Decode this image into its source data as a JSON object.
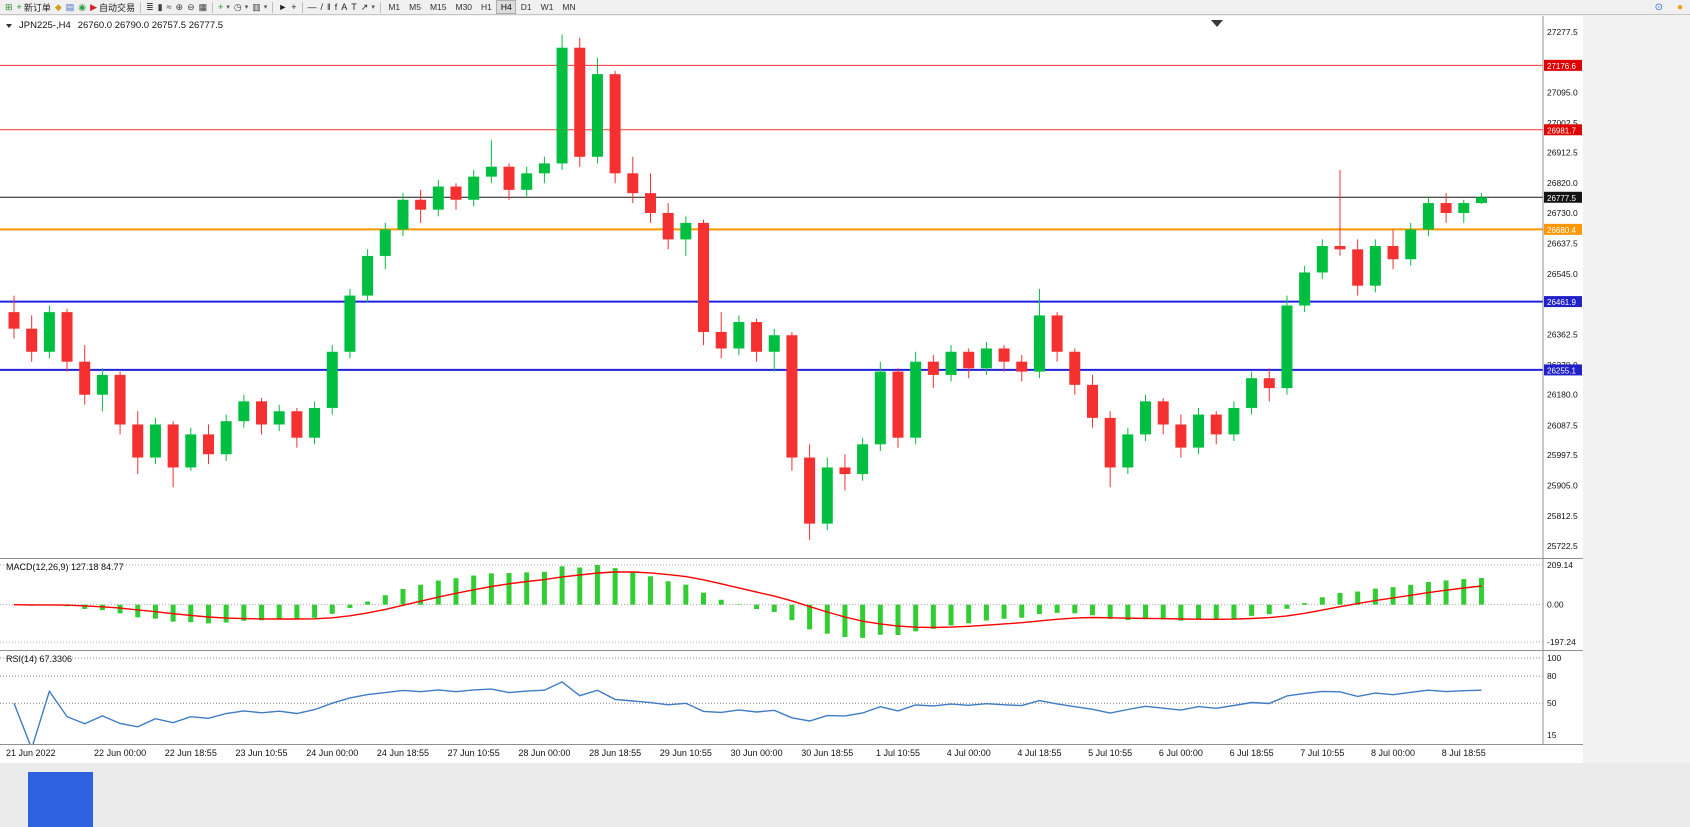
{
  "toolbar": {
    "dropdown_glyph": "▾",
    "groups": [
      {
        "name": "file-group",
        "items": [
          {
            "name": "new-chart",
            "glyph": "⊞",
            "color": "#2e8b2e"
          },
          {
            "name": "new-order-button",
            "glyph": "+",
            "color": "#0a9a0a",
            "label": "新订单"
          },
          {
            "name": "profiles",
            "glyph": "◆",
            "color": "#d4a017"
          },
          {
            "name": "market-watch",
            "glyph": "▤",
            "color": "#3a6fd0"
          },
          {
            "name": "navigator",
            "glyph": "◉",
            "color": "#2f9e44"
          },
          {
            "name": "autotrading-button",
            "glyph": "▶",
            "color": "#d02020",
            "label": "自动交易"
          }
        ]
      },
      {
        "name": "chart-type-group",
        "items": [
          {
            "name": "bar-chart",
            "glyph": "≣",
            "color": "#404040"
          },
          {
            "name": "candlestick-chart",
            "glyph": "▮",
            "color": "#404040"
          },
          {
            "name": "line-chart",
            "glyph": "≈",
            "color": "#404040"
          },
          {
            "name": "zoom-in",
            "glyph": "⊕",
            "color": "#404040"
          },
          {
            "name": "zoom-out",
            "glyph": "⊖",
            "color": "#404040"
          },
          {
            "name": "tile-windows",
            "glyph": "▦",
            "color": "#404040"
          }
        ]
      },
      {
        "name": "tools-group",
        "items": [
          {
            "name": "indicators",
            "glyph": "+",
            "color": "#0a9a0a",
            "dropdown": true
          },
          {
            "name": "periods",
            "glyph": "◷",
            "color": "#404040",
            "dropdown": true
          },
          {
            "name": "templates",
            "glyph": "▥",
            "color": "#404040",
            "dropdown": true
          }
        ]
      },
      {
        "name": "cursor-group",
        "items": [
          {
            "name": "cursor",
            "glyph": "►",
            "color": "#202020"
          },
          {
            "name": "crosshair",
            "glyph": "+",
            "color": "#202020"
          }
        ]
      },
      {
        "name": "drawing-group",
        "items": [
          {
            "name": "horizontal-line",
            "glyph": "—",
            "color": "#202020"
          },
          {
            "name": "trendline",
            "glyph": "/",
            "color": "#202020"
          },
          {
            "name": "equidistant-channel",
            "glyph": "‖",
            "color": "#202020"
          },
          {
            "name": "fibonacci",
            "glyph": "f",
            "color": "#202020"
          },
          {
            "name": "text",
            "glyph": "A",
            "color": "#202020"
          },
          {
            "name": "text-label",
            "glyph": "T",
            "color": "#202020"
          },
          {
            "name": "arrows",
            "glyph": "↗",
            "color": "#202020",
            "dropdown": true
          }
        ]
      }
    ],
    "timeframes": [
      "M1",
      "M5",
      "M15",
      "M30",
      "H1",
      "H4",
      "D1",
      "W1",
      "MN"
    ],
    "active_timeframe": "H4",
    "right_icons": [
      {
        "name": "search",
        "glyph": "⊙",
        "color": "#2b6fd4"
      },
      {
        "name": "notification",
        "glyph": "●",
        "color": "#f0a000"
      }
    ]
  },
  "chart": {
    "title": "JPN225-,H4",
    "ohlc_text": "26760.0 26790.0 26757.5 26777.5",
    "open": 26760.0,
    "high": 26790.0,
    "low": 26757.5,
    "close": 26777.5,
    "price_axis_labels": [
      27277.5,
      27095.0,
      27002.5,
      26912.5,
      26820.0,
      26730.0,
      26637.5,
      26545.0,
      26362.5,
      26270.0,
      26180.0,
      26087.5,
      25997.5,
      25905.0,
      25812.5,
      25722.5
    ],
    "time_axis_labels": [
      "21 Jun 2022",
      "22 Jun 00:00",
      "22 Jun 18:55",
      "23 Jun 10:55",
      "24 Jun 00:00",
      "24 Jun 18:55",
      "27 Jun 10:55",
      "28 Jun 00:00",
      "28 Jun 18:55",
      "29 Jun 10:55",
      "30 Jun 00:00",
      "30 Jun 18:55",
      "1 Jul 10:55",
      "4 Jul 00:00",
      "4 Jul 18:55",
      "5 Jul 10:55",
      "6 Jul 00:00",
      "6 Jul 18:55",
      "7 Jul 10:55",
      "8 Jul 00:00",
      "8 Jul 18:55"
    ],
    "time_label_bars": [
      0,
      6,
      10,
      14,
      18,
      22,
      26,
      30,
      34,
      38,
      42,
      46,
      50,
      54,
      58,
      62,
      66,
      70,
      74,
      78,
      82
    ],
    "levels": [
      {
        "price": 27176.6,
        "color": "#ff3333",
        "width": 1,
        "badge": "#e00000"
      },
      {
        "price": 26981.7,
        "color": "#ff3333",
        "width": 1,
        "badge": "#e00000"
      },
      {
        "price": 26680.4,
        "color": "#ff9800",
        "width": 2,
        "badge": "#ff9800"
      },
      {
        "price": 26461.9,
        "color": "#2020e0",
        "width": 2,
        "badge": "#2121c8"
      },
      {
        "price": 26255.1,
        "color": "#2020e0",
        "width": 2,
        "badge": "#2121c8"
      }
    ],
    "current_price": {
      "price": 26777.5,
      "color": "#141414",
      "badge": "#141414"
    }
  },
  "chart_data": {
    "type": "candlestick",
    "symbol": "JPN225-",
    "timeframe": "H4",
    "price_domain": [
      25686,
      27326
    ],
    "ohlc": [
      [
        26430,
        26480,
        26350,
        26380
      ],
      [
        26380,
        26420,
        26280,
        26310
      ],
      [
        26310,
        26450,
        26290,
        26430
      ],
      [
        26430,
        26440,
        26250,
        26280
      ],
      [
        26280,
        26330,
        26150,
        26180
      ],
      [
        26180,
        26260,
        26130,
        26240
      ],
      [
        26240,
        26250,
        26060,
        26090
      ],
      [
        26090,
        26130,
        25940,
        25990
      ],
      [
        25990,
        26110,
        25970,
        26090
      ],
      [
        26090,
        26100,
        25900,
        25960
      ],
      [
        25960,
        26080,
        25950,
        26060
      ],
      [
        26060,
        26090,
        25970,
        26000
      ],
      [
        26000,
        26120,
        25980,
        26100
      ],
      [
        26100,
        26180,
        26080,
        26160
      ],
      [
        26160,
        26170,
        26060,
        26090
      ],
      [
        26090,
        26150,
        26070,
        26130
      ],
      [
        26130,
        26140,
        26020,
        26050
      ],
      [
        26050,
        26160,
        26030,
        26140
      ],
      [
        26140,
        26330,
        26120,
        26310
      ],
      [
        26310,
        26500,
        26290,
        26480
      ],
      [
        26480,
        26620,
        26460,
        26600
      ],
      [
        26600,
        26700,
        26560,
        26680
      ],
      [
        26680,
        26790,
        26660,
        26770
      ],
      [
        26770,
        26800,
        26700,
        26740
      ],
      [
        26740,
        26830,
        26720,
        26810
      ],
      [
        26810,
        26820,
        26740,
        26770
      ],
      [
        26770,
        26860,
        26750,
        26840
      ],
      [
        26840,
        26950,
        26820,
        26870
      ],
      [
        26870,
        26880,
        26770,
        26800
      ],
      [
        26800,
        26870,
        26780,
        26850
      ],
      [
        26850,
        26900,
        26820,
        26880
      ],
      [
        26880,
        27270,
        26860,
        27230
      ],
      [
        27230,
        27260,
        26870,
        26900
      ],
      [
        26900,
        27200,
        26880,
        27150
      ],
      [
        27150,
        27160,
        26820,
        26850
      ],
      [
        26850,
        26900,
        26760,
        26790
      ],
      [
        26790,
        26850,
        26700,
        26730
      ],
      [
        26730,
        26760,
        26620,
        26650
      ],
      [
        26650,
        26720,
        26600,
        26700
      ],
      [
        26700,
        26710,
        26330,
        26370
      ],
      [
        26370,
        26430,
        26290,
        26320
      ],
      [
        26320,
        26420,
        26300,
        26400
      ],
      [
        26400,
        26410,
        26280,
        26310
      ],
      [
        26310,
        26380,
        26250,
        26360
      ],
      [
        26360,
        26370,
        25950,
        25990
      ],
      [
        25990,
        26030,
        25740,
        25790
      ],
      [
        25790,
        25990,
        25770,
        25960
      ],
      [
        25960,
        26000,
        25890,
        25940
      ],
      [
        25940,
        26050,
        25920,
        26030
      ],
      [
        26030,
        26280,
        26010,
        26250
      ],
      [
        26250,
        26260,
        26020,
        26050
      ],
      [
        26050,
        26310,
        26030,
        26280
      ],
      [
        26280,
        26300,
        26200,
        26240
      ],
      [
        26240,
        26330,
        26220,
        26310
      ],
      [
        26310,
        26320,
        26230,
        26260
      ],
      [
        26260,
        26340,
        26240,
        26320
      ],
      [
        26320,
        26330,
        26250,
        26280
      ],
      [
        26280,
        26300,
        26220,
        26250
      ],
      [
        26250,
        26500,
        26230,
        26420
      ],
      [
        26420,
        26430,
        26280,
        26310
      ],
      [
        26310,
        26320,
        26180,
        26210
      ],
      [
        26210,
        26240,
        26080,
        26110
      ],
      [
        26110,
        26130,
        25900,
        25960
      ],
      [
        25960,
        26080,
        25940,
        26060
      ],
      [
        26060,
        26180,
        26040,
        26160
      ],
      [
        26160,
        26170,
        26060,
        26090
      ],
      [
        26090,
        26120,
        25990,
        26020
      ],
      [
        26020,
        26140,
        26000,
        26120
      ],
      [
        26120,
        26130,
        26030,
        26060
      ],
      [
        26060,
        26160,
        26040,
        26140
      ],
      [
        26140,
        26250,
        26120,
        26230
      ],
      [
        26230,
        26260,
        26160,
        26200
      ],
      [
        26200,
        26480,
        26180,
        26450
      ],
      [
        26450,
        26570,
        26430,
        26550
      ],
      [
        26550,
        26650,
        26530,
        26630
      ],
      [
        26630,
        26860,
        26600,
        26620
      ],
      [
        26620,
        26650,
        26480,
        26510
      ],
      [
        26510,
        26650,
        26490,
        26630
      ],
      [
        26630,
        26680,
        26560,
        26590
      ],
      [
        26590,
        26700,
        26570,
        26680
      ],
      [
        26680,
        26780,
        26660,
        26760
      ],
      [
        26760,
        26790,
        26700,
        26730
      ],
      [
        26730,
        26770,
        26700,
        26760
      ],
      [
        26760,
        26790,
        26757.5,
        26777.5
      ]
    ],
    "macd_params": [
      12,
      26,
      9
    ],
    "macd_current": [
      127.18,
      84.77
    ],
    "rsi_period": 14,
    "rsi_current": 67.3306
  },
  "indicators": {
    "macd": {
      "label_text": "MACD(12,26,9) 127.18 84.77",
      "axis_labels": [
        "209.14",
        "0.00",
        "-197.24"
      ],
      "axis_values": [
        209.14,
        0,
        -197.24
      ],
      "hist_color": "#32cd32",
      "signal_color": "#ff0000"
    },
    "rsi": {
      "label_text": "RSI(14) 67.3306",
      "axis_labels": [
        "100",
        "80",
        "50",
        "15"
      ],
      "axis_values": [
        100,
        80,
        50,
        15
      ],
      "level_values": [
        100,
        80,
        50
      ],
      "line_color": "#3f7cc4"
    }
  },
  "colors": {
    "candle_up": "#00bf40",
    "candle_down": "#f43030",
    "chrome": "#f0f0f0",
    "chart_background": "#ffffff"
  }
}
